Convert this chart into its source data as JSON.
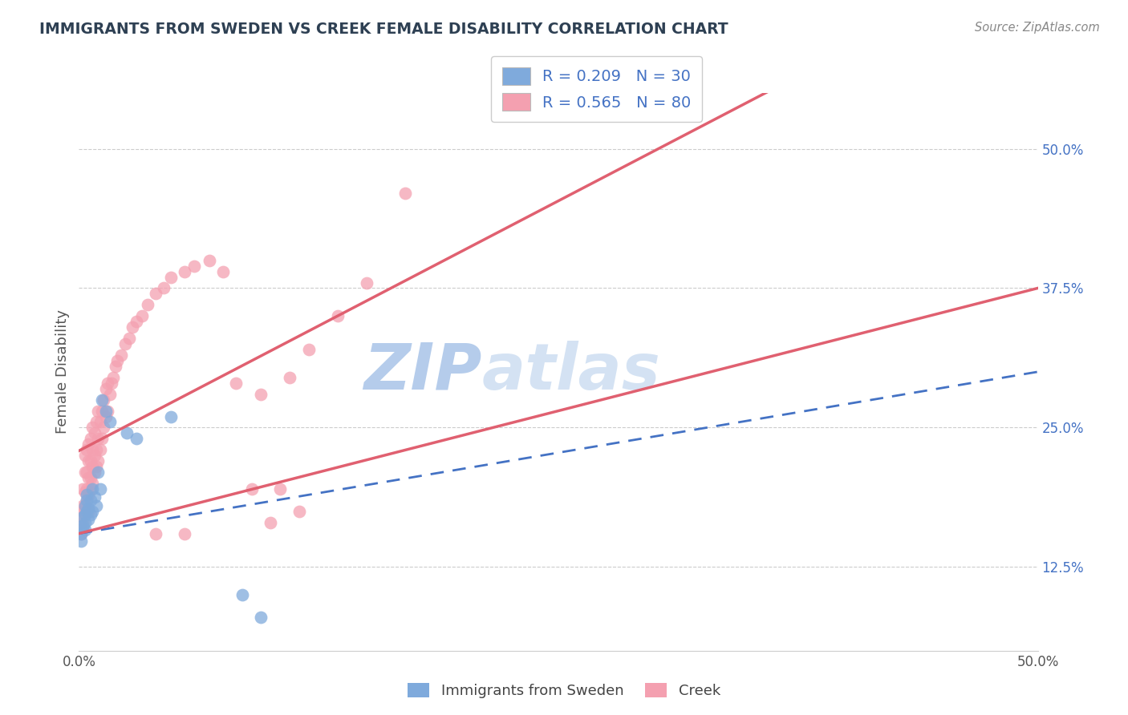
{
  "title": "IMMIGRANTS FROM SWEDEN VS CREEK FEMALE DISABILITY CORRELATION CHART",
  "source": "Source: ZipAtlas.com",
  "ylabel": "Female Disability",
  "watermark": "ZIPatlas",
  "xmin": 0.0,
  "xmax": 0.5,
  "ymin": 0.05,
  "ymax": 0.55,
  "legend_r1": "R = 0.209",
  "legend_n1": "N = 30",
  "legend_r2": "R = 0.565",
  "legend_n2": "N = 80",
  "color_sweden": "#7faadc",
  "color_creek": "#f4a0b0",
  "color_sweden_line": "#4472c4",
  "color_creek_line": "#e06070",
  "color_title": "#2e4053",
  "color_watermark": "#c8d8f0",
  "sweden_x": [
    0.001,
    0.001,
    0.002,
    0.002,
    0.002,
    0.003,
    0.003,
    0.003,
    0.003,
    0.004,
    0.004,
    0.004,
    0.005,
    0.005,
    0.006,
    0.006,
    0.007,
    0.007,
    0.008,
    0.009,
    0.01,
    0.011,
    0.012,
    0.014,
    0.016,
    0.025,
    0.03,
    0.048,
    0.085,
    0.095
  ],
  "sweden_y": [
    0.155,
    0.148,
    0.16,
    0.162,
    0.17,
    0.158,
    0.165,
    0.172,
    0.18,
    0.175,
    0.185,
    0.19,
    0.178,
    0.168,
    0.172,
    0.185,
    0.175,
    0.195,
    0.188,
    0.18,
    0.21,
    0.195,
    0.275,
    0.265,
    0.255,
    0.245,
    0.24,
    0.26,
    0.1,
    0.08
  ],
  "creek_x": [
    0.001,
    0.001,
    0.001,
    0.002,
    0.002,
    0.002,
    0.002,
    0.003,
    0.003,
    0.003,
    0.003,
    0.003,
    0.004,
    0.004,
    0.004,
    0.004,
    0.005,
    0.005,
    0.005,
    0.005,
    0.005,
    0.006,
    0.006,
    0.006,
    0.006,
    0.007,
    0.007,
    0.007,
    0.007,
    0.008,
    0.008,
    0.008,
    0.009,
    0.009,
    0.009,
    0.01,
    0.01,
    0.01,
    0.011,
    0.011,
    0.012,
    0.012,
    0.013,
    0.013,
    0.014,
    0.014,
    0.015,
    0.015,
    0.016,
    0.017,
    0.018,
    0.019,
    0.02,
    0.022,
    0.024,
    0.026,
    0.028,
    0.03,
    0.033,
    0.036,
    0.04,
    0.044,
    0.048,
    0.055,
    0.06,
    0.068,
    0.075,
    0.082,
    0.09,
    0.1,
    0.11,
    0.12,
    0.135,
    0.15,
    0.17,
    0.095,
    0.105,
    0.115,
    0.04,
    0.055
  ],
  "creek_y": [
    0.155,
    0.162,
    0.17,
    0.175,
    0.165,
    0.18,
    0.195,
    0.172,
    0.18,
    0.192,
    0.21,
    0.225,
    0.185,
    0.195,
    0.21,
    0.23,
    0.175,
    0.19,
    0.205,
    0.22,
    0.235,
    0.195,
    0.205,
    0.22,
    0.24,
    0.2,
    0.215,
    0.23,
    0.25,
    0.21,
    0.225,
    0.245,
    0.215,
    0.23,
    0.255,
    0.22,
    0.24,
    0.265,
    0.23,
    0.255,
    0.24,
    0.265,
    0.25,
    0.275,
    0.26,
    0.285,
    0.265,
    0.29,
    0.28,
    0.29,
    0.295,
    0.305,
    0.31,
    0.315,
    0.325,
    0.33,
    0.34,
    0.345,
    0.35,
    0.36,
    0.37,
    0.375,
    0.385,
    0.39,
    0.395,
    0.4,
    0.39,
    0.29,
    0.195,
    0.165,
    0.295,
    0.32,
    0.35,
    0.38,
    0.46,
    0.28,
    0.195,
    0.175,
    0.155,
    0.155
  ]
}
